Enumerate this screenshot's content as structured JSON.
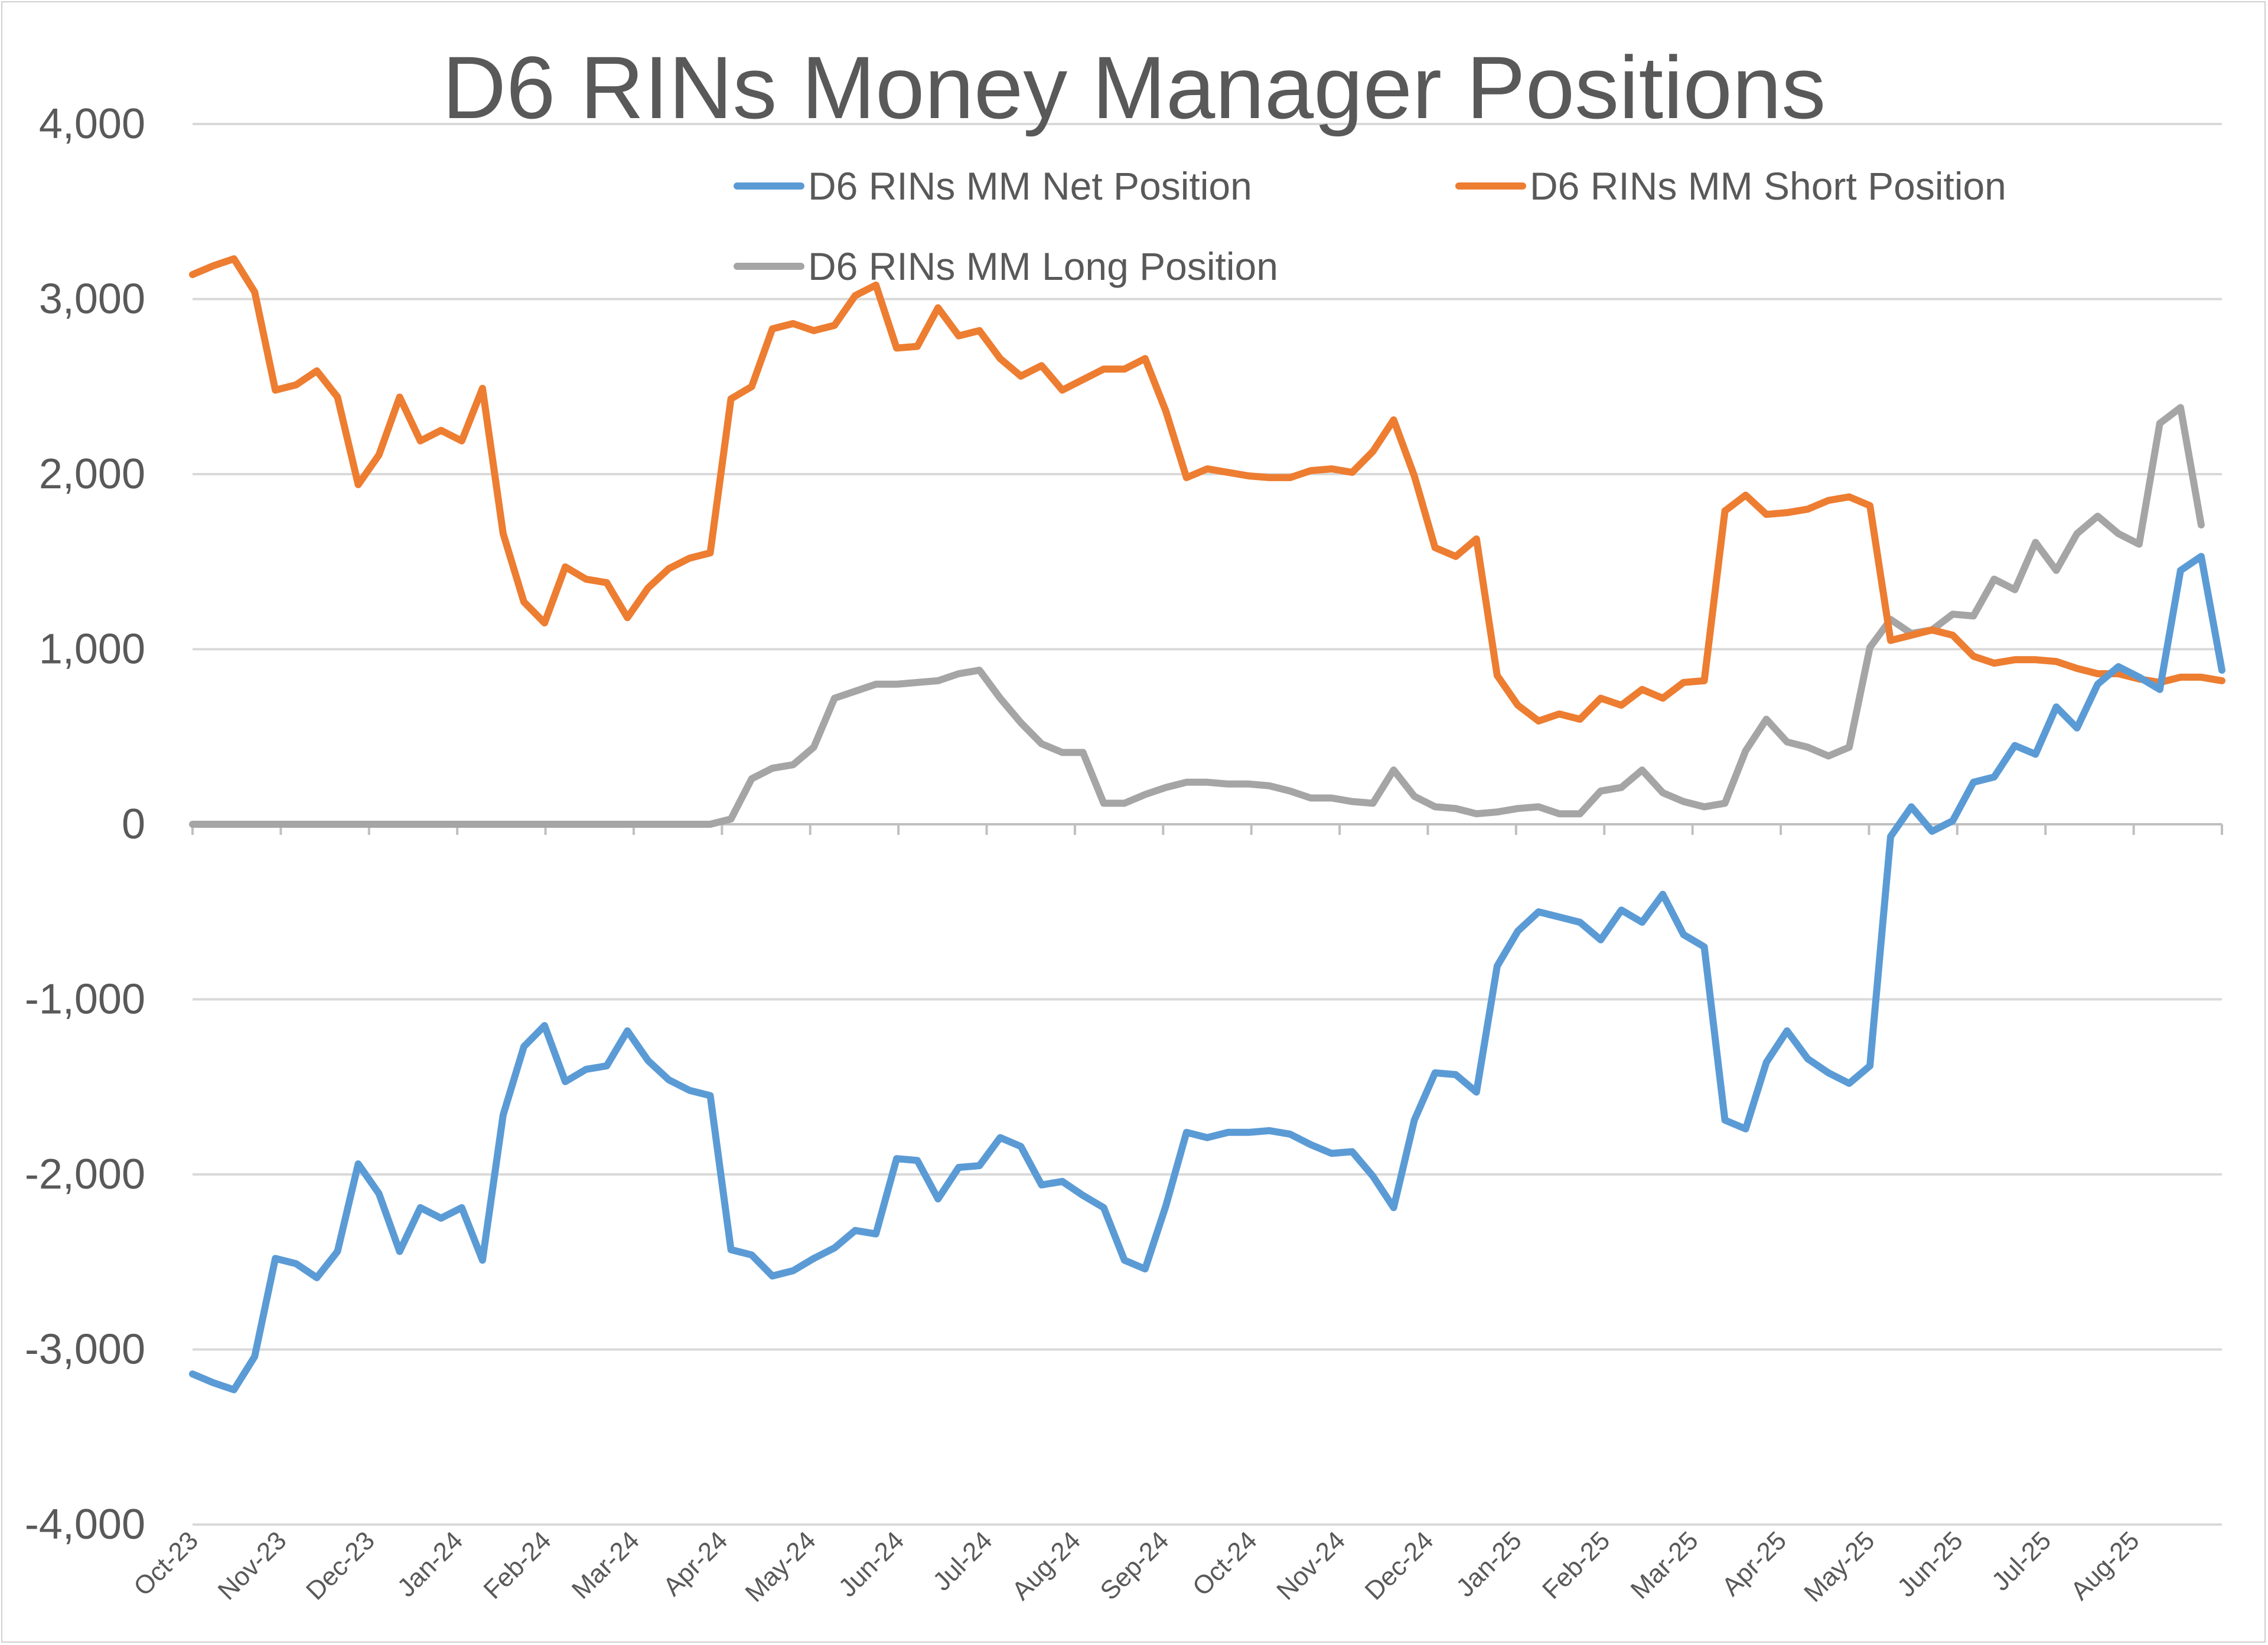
{
  "chart_data": {
    "type": "line",
    "title": "D6 RINs Money Manager Positions",
    "xlabel": "",
    "ylabel": "",
    "ylim": [
      -4000,
      4000
    ],
    "y_ticks": [
      4000,
      3000,
      2000,
      1000,
      0,
      -1000,
      -2000,
      -3000,
      -4000
    ],
    "y_tick_labels": [
      "4,000",
      "3,000",
      "2,000",
      "1,000",
      "0",
      "-1,000",
      "-2,000",
      "-3,000",
      "-4,000"
    ],
    "x_tick_labels": [
      "Oct-23",
      "Nov-23",
      "Dec-23",
      "Jan-24",
      "Feb-24",
      "Mar-24",
      "Apr-24",
      "May-24",
      "Jun-24",
      "Jul-24",
      "Aug-24",
      "Sep-24",
      "Oct-24",
      "Nov-24",
      "Dec-24",
      "Jan-25",
      "Feb-25",
      "Mar-25",
      "Apr-25",
      "May-25",
      "Jun-25",
      "Jul-25",
      "Aug-25"
    ],
    "grid": "horizontal",
    "legend_position": "top",
    "series": [
      {
        "name": "D6 RINs MM Net Position",
        "color": "#5B9BD5",
        "values": [
          -3140,
          -3190,
          -3230,
          -3040,
          -2480,
          -2510,
          -2590,
          -2440,
          -1940,
          -2110,
          -2440,
          -2190,
          -2250,
          -2190,
          -2490,
          -1660,
          -1270,
          -1150,
          -1470,
          -1400,
          -1380,
          -1180,
          -1350,
          -1460,
          -1520,
          -1550,
          -2430,
          -2460,
          -2580,
          -2550,
          -2480,
          -2420,
          -2320,
          -2340,
          -1910,
          -1920,
          -2140,
          -1960,
          -1950,
          -1790,
          -1840,
          -2060,
          -2040,
          -2120,
          -2190,
          -2490,
          -2540,
          -2180,
          -1760,
          -1790,
          -1760,
          -1760,
          -1750,
          -1770,
          -1830,
          -1880,
          -1870,
          -2010,
          -2190,
          -1690,
          -1420,
          -1430,
          -1530,
          -810,
          -610,
          -500,
          -530,
          -560,
          -660,
          -490,
          -560,
          -400,
          -630,
          -700,
          -1690,
          -1740,
          -1360,
          -1180,
          -1340,
          -1420,
          -1480,
          -1380,
          -70,
          100,
          -40,
          20,
          240,
          270,
          450,
          400,
          670,
          550,
          800,
          900,
          840,
          770,
          1450,
          1530,
          880
        ]
      },
      {
        "name": "D6 RINs MM Short Position",
        "color": "#ED7D31",
        "values": [
          3140,
          3190,
          3230,
          3040,
          2480,
          2510,
          2590,
          2440,
          1940,
          2110,
          2440,
          2190,
          2250,
          2190,
          2490,
          1660,
          1270,
          1150,
          1470,
          1400,
          1380,
          1180,
          1350,
          1460,
          1520,
          1550,
          2430,
          2500,
          2830,
          2860,
          2820,
          2850,
          3020,
          3080,
          2720,
          2730,
          2950,
          2790,
          2820,
          2660,
          2560,
          2620,
          2480,
          2540,
          2600,
          2600,
          2660,
          2360,
          1980,
          2030,
          2010,
          1990,
          1980,
          1980,
          2020,
          2030,
          2010,
          2130,
          2310,
          1990,
          1580,
          1530,
          1630,
          850,
          680,
          590,
          630,
          600,
          720,
          680,
          770,
          720,
          810,
          820,
          1790,
          1880,
          1770,
          1780,
          1800,
          1850,
          1870,
          1820,
          1050,
          1080,
          1110,
          1080,
          960,
          920,
          940,
          940,
          930,
          890,
          860,
          860,
          830,
          810,
          840,
          840,
          820
        ]
      },
      {
        "name": "D6 RINs MM Long Position",
        "color": "#A5A5A5",
        "values": [
          0,
          0,
          0,
          0,
          0,
          0,
          0,
          0,
          0,
          0,
          0,
          0,
          0,
          0,
          0,
          0,
          0,
          0,
          0,
          0,
          0,
          0,
          0,
          0,
          0,
          0,
          30,
          260,
          320,
          340,
          440,
          720,
          760,
          800,
          800,
          810,
          820,
          860,
          880,
          720,
          580,
          460,
          410,
          410,
          120,
          120,
          170,
          210,
          240,
          240,
          230,
          230,
          220,
          190,
          150,
          150,
          130,
          120,
          310,
          160,
          100,
          90,
          60,
          70,
          90,
          100,
          60,
          60,
          190,
          210,
          310,
          180,
          130,
          100,
          120,
          420,
          600,
          470,
          440,
          390,
          440,
          1010,
          1170,
          1090,
          1110,
          1200,
          1190,
          1400,
          1340,
          1610,
          1450,
          1660,
          1760,
          1660,
          1600,
          2290,
          2380,
          1710
        ]
      }
    ]
  }
}
